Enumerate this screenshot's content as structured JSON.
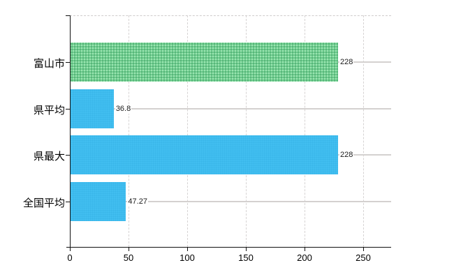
{
  "chart_data": {
    "type": "bar",
    "orientation": "horizontal",
    "title": "",
    "xlabel": "",
    "ylabel": "",
    "categories": [
      "富山市",
      "県平均",
      "県最大",
      "全国平均"
    ],
    "values": [
      228,
      36.8,
      228,
      47.27
    ],
    "value_labels": [
      "228",
      "36.8",
      "228",
      "47.27"
    ],
    "bar_color_keys": [
      "green",
      "blue",
      "blue",
      "blue"
    ],
    "xticks": [
      0,
      50,
      100,
      150,
      200,
      250
    ],
    "xtick_labels": [
      "0",
      "50",
      "100",
      "150",
      "200",
      "250"
    ],
    "xlim": [
      0,
      273.8
    ],
    "grid": true,
    "legend": "none"
  },
  "colors": {
    "bar_green": "#6fce8e",
    "bar_blue": "#41bef0",
    "axis": "#111111",
    "grid_dashed": "#d6d3d3",
    "row_line": "#d4d1d0",
    "text": "#000000",
    "background": "#ffffff"
  }
}
